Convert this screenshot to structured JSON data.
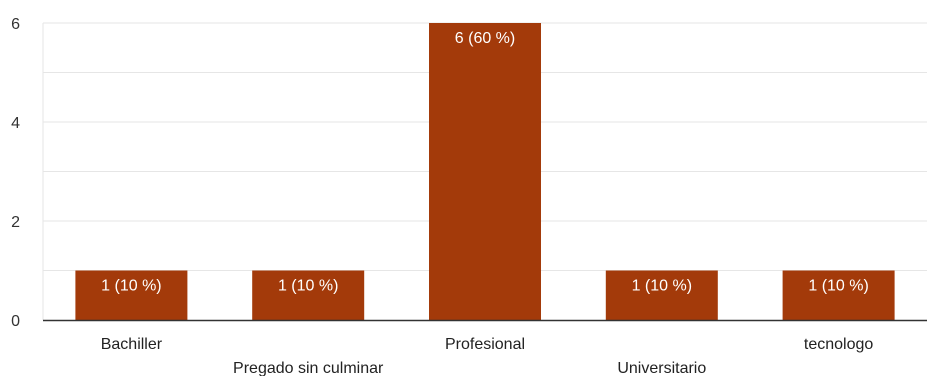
{
  "chart_data": {
    "type": "bar",
    "categories": [
      "Bachiller",
      "Pregado sin culminar",
      "Profesional",
      "Universitario",
      "tecnologo"
    ],
    "values": [
      1,
      1,
      6,
      1,
      1
    ],
    "data_labels": [
      "1 (10 %)",
      "1 (10 %)",
      "6 (60 %)",
      "1 (10 %)",
      "1 (10 %)"
    ],
    "yticks": [
      0,
      2,
      4,
      6
    ],
    "ylim": [
      0,
      6
    ],
    "grid": true,
    "bar_color": "#a33a0a",
    "grid_color": "#e6e6e6",
    "axis_color": "#333333"
  }
}
